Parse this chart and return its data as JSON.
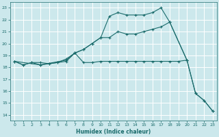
{
  "xlabel": "Humidex (Indice chaleur)",
  "bg_color": "#cce8ec",
  "grid_color": "#b0d8dc",
  "line_color": "#1a6b6b",
  "xlim": [
    -0.5,
    23.5
  ],
  "ylim": [
    13.5,
    23.5
  ],
  "xticks": [
    0,
    1,
    2,
    3,
    4,
    5,
    6,
    7,
    8,
    9,
    10,
    11,
    12,
    13,
    14,
    15,
    16,
    17,
    18,
    19,
    20,
    21,
    22,
    23
  ],
  "yticks": [
    14,
    15,
    16,
    17,
    18,
    19,
    20,
    21,
    22,
    23
  ],
  "line1_x": [
    0,
    1,
    2,
    3,
    4,
    5,
    6,
    7,
    8,
    9,
    10,
    11,
    12,
    13,
    14,
    15,
    16,
    17,
    18,
    19,
    20
  ],
  "line1_y": [
    18.5,
    18.2,
    18.4,
    18.4,
    18.3,
    18.4,
    18.5,
    19.2,
    18.4,
    18.4,
    18.5,
    18.5,
    18.5,
    18.5,
    18.5,
    18.5,
    18.5,
    18.5,
    18.5,
    18.5,
    18.6
  ],
  "line2_x": [
    0,
    1,
    2,
    3,
    4,
    5,
    6,
    7,
    8,
    9,
    10,
    11,
    12,
    13,
    14,
    15,
    16,
    17,
    18,
    20,
    21,
    22,
    23
  ],
  "line2_y": [
    18.5,
    18.2,
    18.4,
    18.2,
    18.3,
    18.4,
    18.7,
    19.2,
    19.5,
    20.0,
    20.5,
    22.3,
    22.6,
    22.4,
    22.4,
    22.4,
    22.6,
    23.0,
    21.8,
    18.6,
    15.8,
    15.2,
    14.3
  ],
  "line3_x": [
    0,
    3,
    6,
    7,
    8,
    9,
    10,
    11,
    12,
    13,
    14,
    15,
    16,
    17,
    18,
    20,
    21,
    22,
    23
  ],
  "line3_y": [
    18.5,
    18.2,
    18.6,
    19.2,
    19.5,
    20.0,
    20.5,
    20.5,
    21.0,
    20.8,
    20.8,
    21.0,
    21.2,
    21.4,
    21.8,
    18.6,
    15.8,
    15.2,
    14.3
  ]
}
